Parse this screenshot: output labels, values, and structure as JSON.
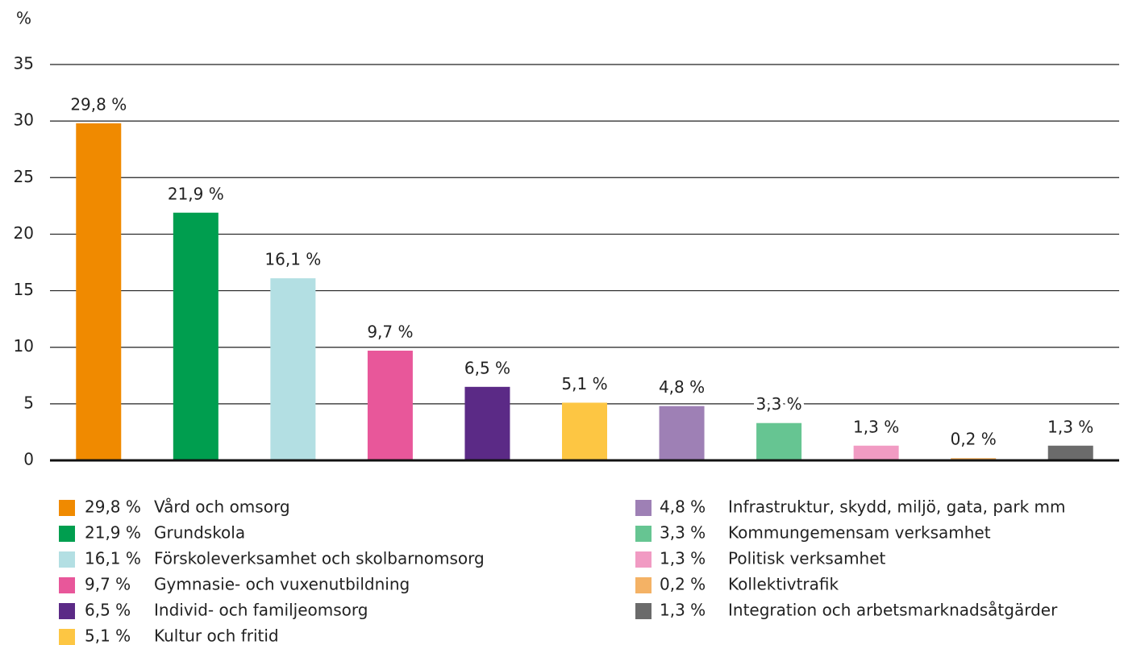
{
  "chart_data": {
    "type": "bar",
    "y_axis_label": "%",
    "categories": [
      "Vård och omsorg",
      "Grundskola",
      "Förskoleverksamhet och skolbarnomsorg",
      "Gymnasie- och vuxenutbildning",
      "Individ- och familjeomsorg",
      "Kultur och fritid",
      "Infrastruktur, skydd, miljö, gata, park mm",
      "Kommungemensam verksamhet",
      "Politisk verksamhet",
      "Kollektivtrafik",
      "Integration och arbetsmarknadsåtgärder"
    ],
    "values": [
      29.8,
      21.9,
      16.1,
      9.7,
      6.5,
      5.1,
      4.8,
      3.3,
      1.3,
      0.2,
      1.3
    ],
    "value_labels": [
      "29,8 %",
      "21,9 %",
      "16,1 %",
      "9,7 %",
      "6,5 %",
      "5,1 %",
      "4,8 %",
      "3,3 %",
      "1,3 %",
      "0,2 %",
      "1,3 %"
    ],
    "colors": [
      "#f08a00",
      "#009e4f",
      "#b3dfe3",
      "#e8579a",
      "#5b2a86",
      "#fdc643",
      "#9e80b5",
      "#66c592",
      "#f19bc3",
      "#f4b265",
      "#6b6b6b"
    ],
    "ylim": [
      0,
      35
    ],
    "yticks": [
      0,
      5,
      10,
      15,
      20,
      25,
      30,
      35
    ],
    "grid": true
  }
}
